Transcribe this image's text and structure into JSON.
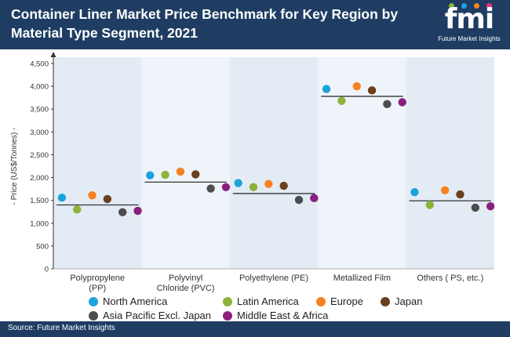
{
  "header": {
    "title": "Container Liner Market Price Benchmark for Key Region by Material Type Segment, 2021",
    "logo_text": "fmi",
    "logo_sub": "Future Market Insights"
  },
  "footer": {
    "source": "Source: Future Market Insights"
  },
  "colors": {
    "header_bg": "#1f3d63",
    "band_light": "#eef4f9",
    "band_dark": "#e3ecf5",
    "benchmark_line": "#333333"
  },
  "chart_data": {
    "type": "scatter",
    "title": "Container Liner Market Price Benchmark for Key Region by Material Type Segment, 2021",
    "ylabel": "- Price (US$/Tonnes) -",
    "xlabel": "",
    "ylim": [
      0,
      4500
    ],
    "yticks": [
      "0",
      "500",
      "1,000",
      "1,500",
      "2,000",
      "2,500",
      "3,000",
      "3,500",
      "4,000",
      "4,500"
    ],
    "ytick_values": [
      0,
      500,
      1000,
      1500,
      2000,
      2500,
      3000,
      3500,
      4000,
      4500
    ],
    "categories": [
      [
        "Polypropylene",
        "(PP)"
      ],
      [
        "Polyvinyl",
        "Chloride (PVC)"
      ],
      [
        "Polyethylene (PE)"
      ],
      [
        "Metallized Film"
      ],
      [
        "Others ( PS, etc.)"
      ]
    ],
    "benchmark": [
      1400,
      1900,
      1650,
      3780,
      1490
    ],
    "series": [
      {
        "name": "North America",
        "color": "#1ca3dc",
        "values": [
          1560,
          2050,
          1880,
          3940,
          1680
        ]
      },
      {
        "name": "Latin America",
        "color": "#8db33a",
        "values": [
          1300,
          2060,
          1790,
          3680,
          1400
        ]
      },
      {
        "name": "Europe",
        "color": "#f58220",
        "values": [
          1610,
          2130,
          1860,
          4000,
          1720
        ]
      },
      {
        "name": "Japan",
        "color": "#6b3f1f",
        "values": [
          1530,
          2070,
          1820,
          3910,
          1630
        ]
      },
      {
        "name": "Asia Pacific Excl. Japan",
        "color": "#4d4d4d",
        "values": [
          1240,
          1760,
          1510,
          3610,
          1340
        ]
      },
      {
        "name": "Middle East & Africa",
        "color": "#8b1e7e",
        "values": [
          1270,
          1790,
          1550,
          3650,
          1370
        ]
      }
    ],
    "legend_placement": "bottom",
    "grid": false
  }
}
